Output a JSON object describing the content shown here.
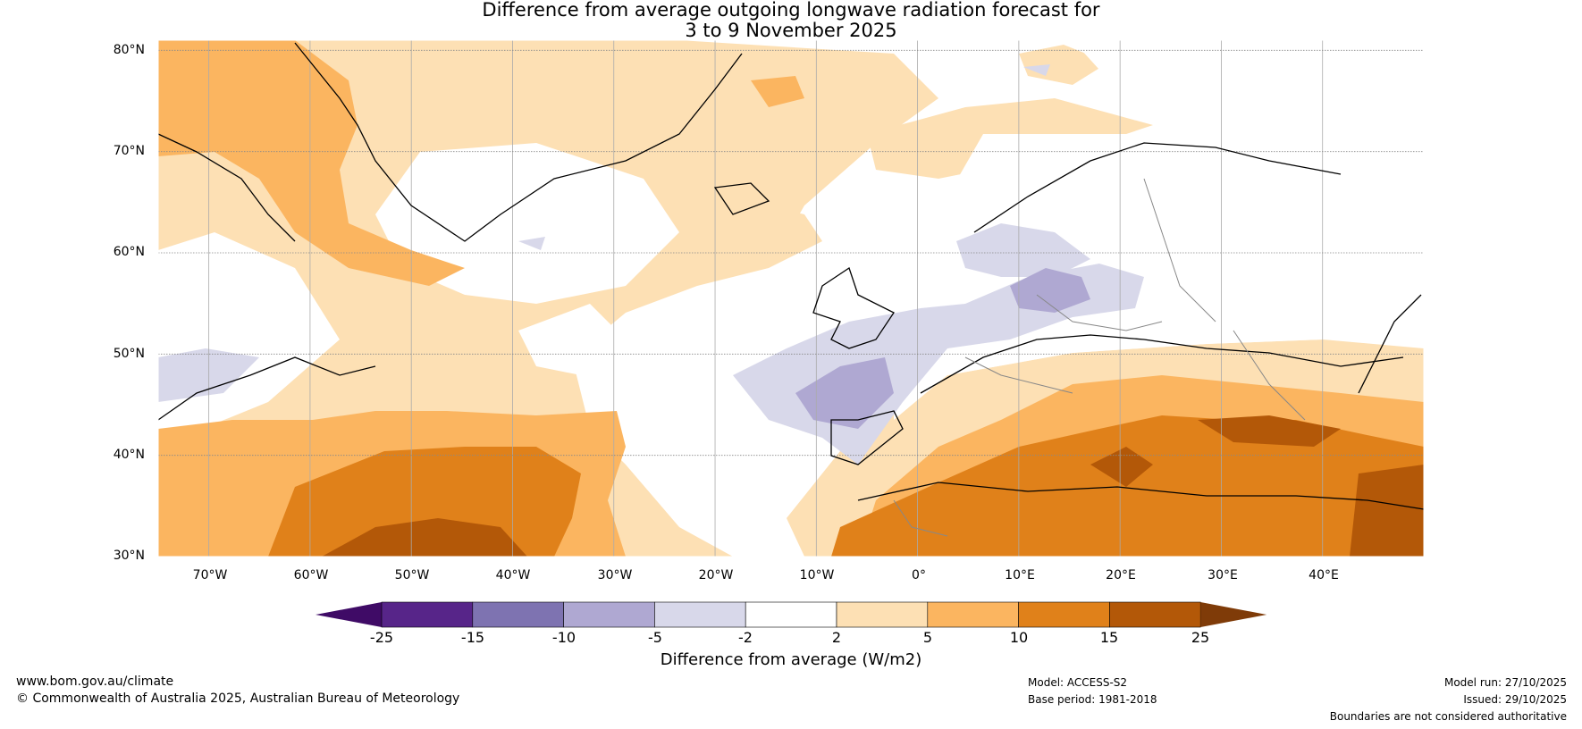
{
  "title": {
    "line1": "Difference from average outgoing longwave radiation forecast for",
    "line2": "3 to 9 November 2025"
  },
  "map": {
    "lat_labels": [
      "80°N",
      "70°N",
      "60°N",
      "50°N",
      "40°N",
      "30°N"
    ],
    "lon_labels": [
      "70°W",
      "60°W",
      "50°W",
      "40°W",
      "30°W",
      "20°W",
      "10°W",
      "0°",
      "10°E",
      "20°E",
      "30°E",
      "40°E"
    ],
    "lon_range": [
      -75,
      50
    ],
    "lat_range": [
      30,
      81
    ]
  },
  "colorbar": {
    "tick_labels": [
      "-25",
      "-15",
      "-10",
      "-5",
      "-2",
      "2",
      "5",
      "10",
      "15",
      "25"
    ],
    "colors": [
      "#3f0b66",
      "#572589",
      "#7e73b1",
      "#afa8d2",
      "#d8d8ea",
      "#ffffff",
      "#fde0b4",
      "#fbb560",
      "#e0811a",
      "#b35808",
      "#7f3b08"
    ],
    "label": "Difference from average (W/m2)"
  },
  "footer": {
    "website": "www.bom.gov.au/climate",
    "copyright": "© Commonwealth of Australia 2025, Australian Bureau of Meteorology",
    "model": "Model: ACCESS-S2",
    "base_period": "Base period: 1981-2018",
    "model_run": "Model run: 27/10/2025",
    "issued": "Issued: 29/10/2025",
    "disclaimer": "Boundaries are not considered authoritative"
  }
}
